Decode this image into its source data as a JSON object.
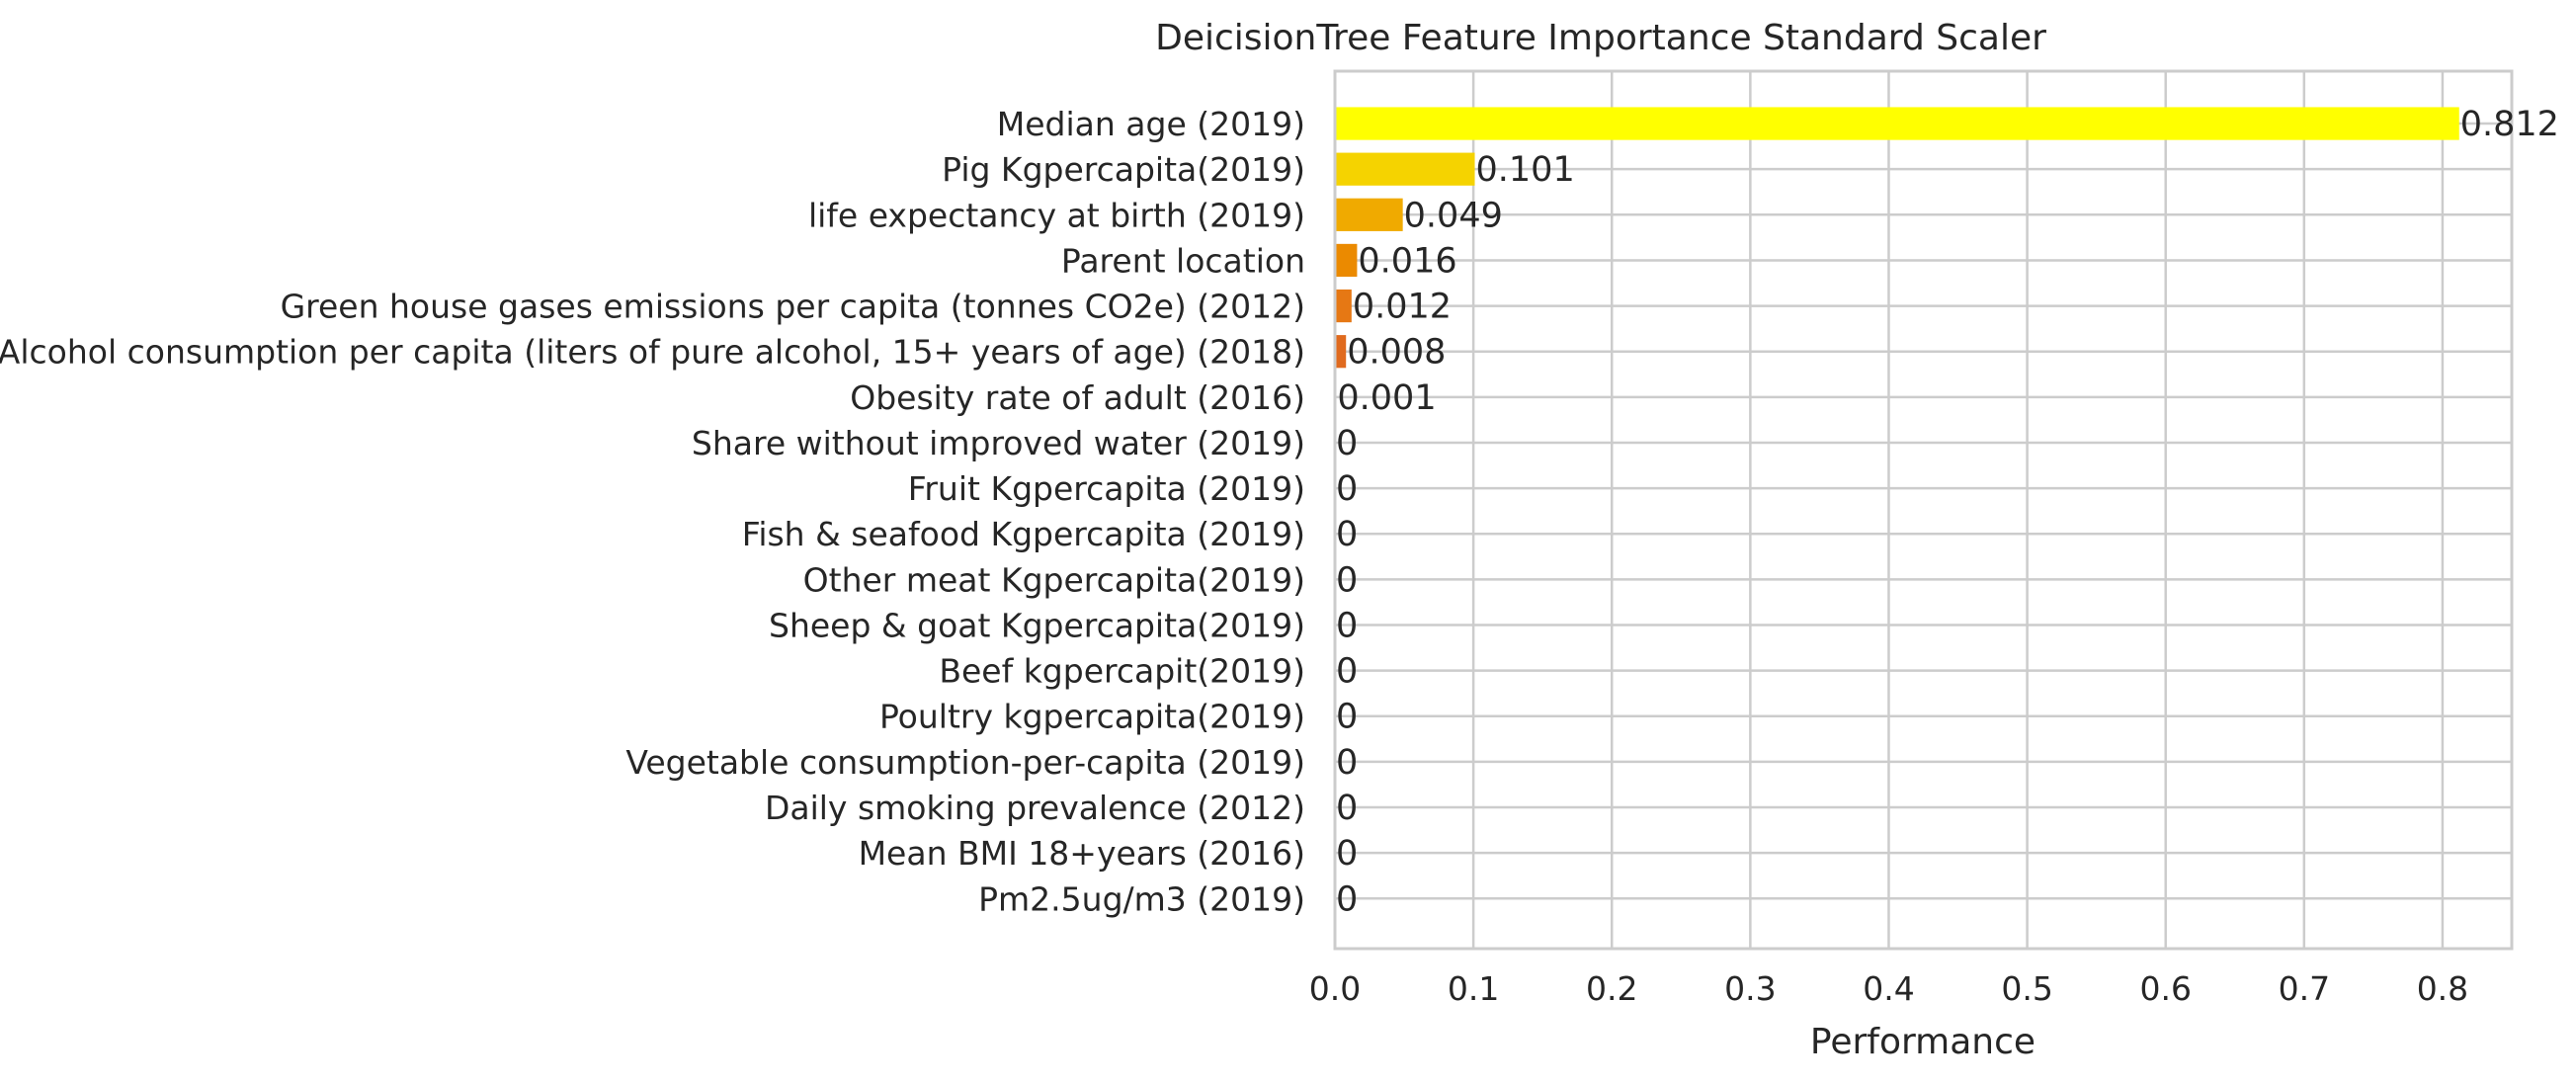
{
  "chart_data": {
    "type": "bar",
    "orientation": "horizontal",
    "title": "DeicisionTree Feature Importance Standard Scaler",
    "xlabel": "Performance",
    "ylabel": "",
    "xlim": [
      0,
      0.85
    ],
    "xticks": [
      0.0,
      0.1,
      0.2,
      0.3,
      0.4,
      0.5,
      0.6,
      0.7,
      0.8
    ],
    "xtick_labels": [
      "0.0",
      "0.1",
      "0.2",
      "0.3",
      "0.4",
      "0.5",
      "0.6",
      "0.7",
      "0.8"
    ],
    "grid": true,
    "categories": [
      "Median age (2019)",
      "Pig Kgpercapita(2019)",
      "life expectancy at birth (2019)",
      "Parent location",
      "Green house gases emissions per capita (tonnes CO2e) (2012)",
      "Alcohol consumption per capita (liters of pure alcohol, 15+ years of age) (2018)",
      "Obesity rate of adult (2016)",
      "Share without improved water (2019)",
      "Fruit Kgpercapita (2019)",
      "Fish & seafood Kgpercapita (2019)",
      "Other meat Kgpercapita(2019)",
      "Sheep & goat Kgpercapita(2019)",
      "Beef kgpercapit(2019)",
      "Poultry kgpercapita(2019)",
      "Vegetable consumption-per-capita (2019)",
      "Daily smoking prevalence (2012)",
      "Mean BMI 18+years (2016)",
      "Pm2.5ug/m3 (2019)"
    ],
    "values": [
      0.812,
      0.101,
      0.049,
      0.016,
      0.012,
      0.008,
      0.001,
      0,
      0,
      0,
      0,
      0,
      0,
      0,
      0,
      0,
      0,
      0
    ],
    "value_labels": [
      "0.812",
      "0.101",
      "0.049",
      "0.016",
      "0.012",
      "0.008",
      "0.001",
      "0",
      "0",
      "0",
      "0",
      "0",
      "0",
      "0",
      "0",
      "0",
      "0",
      "0"
    ],
    "bar_colors": [
      "#ffff00",
      "#f5d300",
      "#f0aa00",
      "#eb8a00",
      "#e67814",
      "#e06a1e",
      "#d65a28",
      "#cc4b30",
      "#c23d38",
      "#b83040",
      "#ad2548",
      "#a21c50",
      "#951658",
      "#881460",
      "#7a1568",
      "#6c1870",
      "#5d1b78",
      "#4e1e80"
    ]
  }
}
